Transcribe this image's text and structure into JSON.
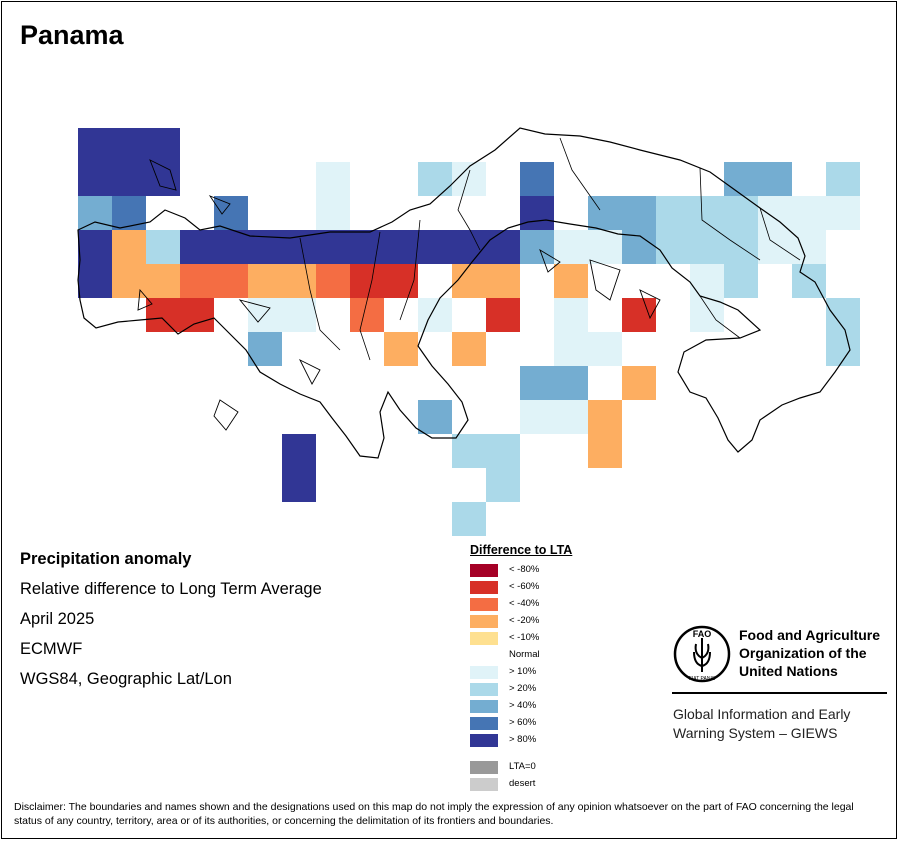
{
  "title": "Panama",
  "info": {
    "heading": "Precipitation anomaly",
    "subtitle": "Relative difference to Long Term Average",
    "period": "April 2025",
    "source": "ECMWF",
    "projection": "WGS84, Geographic Lat/Lon"
  },
  "legend": {
    "title": "Difference to LTA",
    "items": [
      {
        "label": "< -80%",
        "color": "#a50026"
      },
      {
        "label": "< -60%",
        "color": "#d73027"
      },
      {
        "label": "< -40%",
        "color": "#f46d43"
      },
      {
        "label": "< -20%",
        "color": "#fdae61"
      },
      {
        "label": "< -10%",
        "color": "#fee090"
      },
      {
        "label": "Normal",
        "color": "#ffffff"
      },
      {
        "label": "> 10%",
        "color": "#e0f3f8"
      },
      {
        "label": "> 20%",
        "color": "#abd9e9"
      },
      {
        "label": "> 40%",
        "color": "#74add1"
      },
      {
        "label": "> 60%",
        "color": "#4575b4"
      },
      {
        "label": "> 80%",
        "color": "#313695"
      },
      {
        "label": "LTA=0",
        "color": "#999999"
      },
      {
        "label": "desert",
        "color": "#cccccc"
      }
    ]
  },
  "org": {
    "name_line1": "Food and Agriculture",
    "name_line2": "Organization of the",
    "name_line3": "United Nations",
    "logo_text": "FAO",
    "logo_motto": "FIAT PANIS",
    "program_line1": "Global Information and Early",
    "program_line2": "Warning System – GIEWS"
  },
  "disclaimer": "Disclaimer: The boundaries and names shown and the designations used on this map do not imply the expression of any opinion whatsoever on the part of FAO concerning the legal status of any country, territory, area or of its authorities, or concerning the delimitation of its frontiers and boundaries.",
  "map": {
    "grid": {
      "lon_start": -83.0,
      "lat_start": 9.6,
      "step_deg": 0.25,
      "rows": [
        "            ",
        "AAA                           99",
        "AAA    w  7w 9     66 77 88",
        "89  9  i     A 88777wwwww788",
        "A37AAAAAAAAAA6ww6777ww 73w",
        "A334433422 55 5   w7 7  7",
        "  22 ww 4 n 2 n 2 n   7 ww 3",
        "     8   5 3  ww      7",
        "             66 3          7 3",
        "          6  ww3          9",
        "      A    77  3        7 7",
        "      A     7",
        "           7"
      ]
    }
  }
}
